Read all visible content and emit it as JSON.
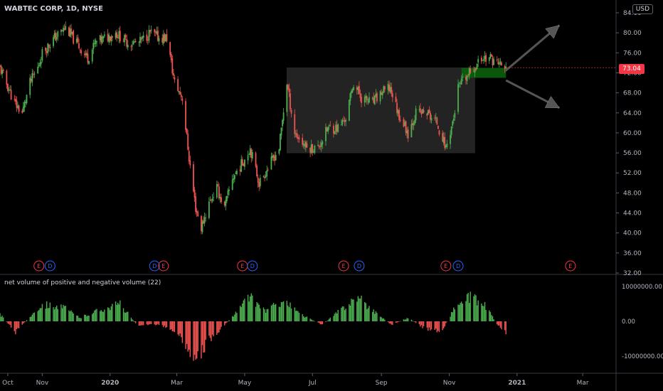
{
  "header": {
    "symbol": "WABTEC CORP, 1D, NYSE",
    "currency": "USD"
  },
  "price": {
    "last": "73.04"
  },
  "indicator": {
    "label": "net volume of positive and negative volume (22)"
  },
  "colors": {
    "up": "#4caf50",
    "down": "#ef5350",
    "box": "#2a2a2a",
    "zone": "#0b5f0b",
    "arrow": "#555555",
    "earn": "#f23645",
    "div": "#2962ff"
  },
  "events": [
    {
      "t": "E",
      "date": "Oct 29 2019"
    },
    {
      "t": "D",
      "date": "Nov 8 2019"
    },
    {
      "t": "D",
      "date": "Feb 10 2020"
    },
    {
      "t": "E",
      "date": "Feb 18 2020"
    },
    {
      "t": "E",
      "date": "Apr 29 2020"
    },
    {
      "t": "D",
      "date": "May 8 2020"
    },
    {
      "t": "E",
      "date": "Jul 29 2020"
    },
    {
      "t": "D",
      "date": "Aug 12 2020"
    },
    {
      "t": "E",
      "date": "Oct 29 2020"
    },
    {
      "t": "D",
      "date": "Nov 9 2020"
    },
    {
      "t": "E",
      "date": "Feb 18 2021"
    }
  ],
  "chart_data": {
    "type": "candlestick",
    "title": "WABTEC CORP, 1D, NYSE",
    "x_ticks": [
      "Oct",
      "Nov",
      "2020",
      "Mar",
      "May",
      "Jul",
      "Sep",
      "Nov",
      "2021",
      "Mar"
    ],
    "y_ticks": [
      "84.00",
      "80.00",
      "76.00",
      "72.00",
      "68.00",
      "64.00",
      "60.00",
      "56.00",
      "52.00",
      "48.00",
      "44.00",
      "40.00",
      "36.00",
      "32.00"
    ],
    "ylim": [
      32,
      84
    ],
    "xlim": [
      "Sep 24 2019",
      "Mar 31 2021"
    ],
    "annotations": [
      {
        "type": "rectangle",
        "from": "Jun 8 2020",
        "to": "Nov 24 2020",
        "y_range": [
          56,
          73
        ]
      },
      {
        "type": "rectangle",
        "from": "Nov 12 2020",
        "to": "Dec 22 2020",
        "y_range": [
          71,
          73
        ],
        "color": "green"
      },
      {
        "type": "arrow",
        "from": [
          "Dec 22 2020",
          72.5
        ],
        "to": [
          "Feb 8 2021",
          81.5
        ]
      },
      {
        "type": "arrow",
        "from": [
          "Dec 22 2020",
          70.5
        ],
        "to": [
          "Feb 8 2021",
          65
        ]
      }
    ],
    "series": [
      {
        "points": [
          [
            "Sep 24 2019",
            73
          ],
          [
            "Oct 7 2019",
            66
          ],
          [
            "Oct 14 2019",
            64
          ],
          [
            "Oct 21 2019",
            70
          ],
          [
            "Oct 28 2019",
            73
          ],
          [
            "Nov 1 2019",
            76
          ],
          [
            "Nov 12 2019",
            79
          ],
          [
            "Nov 22 2019",
            81
          ],
          [
            "Dec 5 2019",
            77
          ],
          [
            "Dec 12 2019",
            75
          ],
          [
            "Dec 19 2019",
            78
          ],
          [
            "Jan 6 2020",
            80
          ],
          [
            "Jan 17 2020",
            78
          ],
          [
            "Jan 27 2020",
            78
          ],
          [
            "Feb 6 2020",
            80
          ],
          [
            "Feb 14 2020",
            79
          ],
          [
            "Feb 21 2020",
            79
          ],
          [
            "Feb 28 2020",
            70
          ],
          [
            "Mar 6 2020",
            67
          ],
          [
            "Mar 12 2020",
            55
          ],
          [
            "Mar 18 2020",
            45
          ],
          [
            "Mar 23 2020",
            41
          ],
          [
            "Mar 30 2020",
            46
          ],
          [
            "Apr 6 2020",
            49
          ],
          [
            "Apr 13 2020",
            45
          ],
          [
            "Apr 20 2020",
            51
          ],
          [
            "Apr 29 2020",
            54
          ],
          [
            "May 6 2020",
            57
          ],
          [
            "May 14 2020",
            50
          ],
          [
            "May 22 2020",
            53
          ],
          [
            "Jun 1 2020",
            57
          ],
          [
            "Jun 8 2020",
            70
          ],
          [
            "Jun 15 2020",
            60
          ],
          [
            "Jun 26 2020",
            57
          ],
          [
            "Jul 6 2020",
            57
          ],
          [
            "Jul 15 2020",
            61
          ],
          [
            "Jul 24 2020",
            61
          ],
          [
            "Jul 31 2020",
            63
          ],
          [
            "Aug 7 2020",
            70
          ],
          [
            "Aug 14 2020",
            67
          ],
          [
            "Aug 24 2020",
            66
          ],
          [
            "Sep 1 2020",
            68
          ],
          [
            "Sep 9 2020",
            69
          ],
          [
            "Sep 16 2020",
            64
          ],
          [
            "Sep 25 2020",
            60
          ],
          [
            "Oct 2 2020",
            64
          ],
          [
            "Oct 12 2020",
            64
          ],
          [
            "Oct 21 2020",
            62
          ],
          [
            "Oct 29 2020",
            57
          ],
          [
            "Nov 5 2020",
            63
          ],
          [
            "Nov 9 2020",
            69
          ],
          [
            "Nov 16 2020",
            71
          ],
          [
            "Nov 23 2020",
            73
          ],
          [
            "Dec 1 2020",
            75
          ],
          [
            "Dec 7 2020",
            75
          ],
          [
            "Dec 14 2020",
            74
          ],
          [
            "Dec 22 2020",
            73
          ]
        ]
      }
    ],
    "indicator": {
      "name": "net volume of positive and negative volume (22)",
      "y_ticks": [
        "10000000.00",
        "0.00",
        "-10000000.00"
      ],
      "ylim": [
        -13000000,
        13000000
      ],
      "points": [
        [
          "Sep 24 2019",
          2000000.0
        ],
        [
          "Oct 8 2019",
          -3000000.0
        ],
        [
          "Oct 20 2019",
          1000000.0
        ],
        [
          "Nov 1 2019",
          5000000.0
        ],
        [
          "Nov 20 2019",
          4000000.0
        ],
        [
          "Dec 5 2019",
          1000000.0
        ],
        [
          "Dec 20 2019",
          3000000.0
        ],
        [
          "Jan 10 2020",
          5000000.0
        ],
        [
          "Jan 25 2020",
          -1000000.0
        ],
        [
          "Feb 15 2020",
          -1000000.0
        ],
        [
          "Mar 1 2020",
          -3000000.0
        ],
        [
          "Mar 12 2020",
          -8000000.0
        ],
        [
          "Mar 20 2020",
          -11000000.0
        ],
        [
          "Mar 28 2020",
          -6000000.0
        ],
        [
          "Apr 10 2020",
          -2000000.0
        ],
        [
          "Apr 25 2020",
          3000000.0
        ],
        [
          "May 5 2020",
          7000000.0
        ],
        [
          "May 20 2020",
          3000000.0
        ],
        [
          "Jun 5 2020",
          6000000.0
        ],
        [
          "Jun 20 2020",
          2000000.0
        ],
        [
          "Jul 10 2020",
          -1000000.0
        ],
        [
          "Jul 25 2020",
          3000000.0
        ],
        [
          "Aug 10 2020",
          7000000.0
        ],
        [
          "Aug 25 2020",
          3000000.0
        ],
        [
          "Sep 10 2020",
          -1000000.0
        ],
        [
          "Sep 25 2020",
          1000000.0
        ],
        [
          "Oct 10 2020",
          -2000000.0
        ],
        [
          "Oct 25 2020",
          -3000000.0
        ],
        [
          "Nov 6 2020",
          4000000.0
        ],
        [
          "Nov 20 2020",
          7000000.0
        ],
        [
          "Dec 5 2020",
          4000000.0
        ],
        [
          "Dec 14 2020",
          -1000000.0
        ],
        [
          "Dec 22 2020",
          -3000000.0
        ]
      ]
    }
  }
}
